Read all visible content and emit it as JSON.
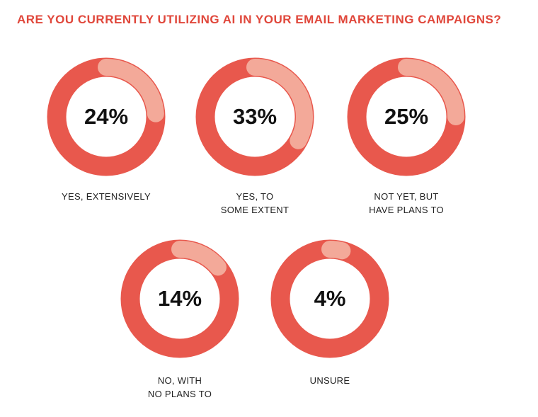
{
  "chart_data": {
    "type": "donut",
    "title": "ARE YOU CURRENTLY UTILIZING AI IN YOUR EMAIL MARKETING CAMPAIGNS?",
    "unit": "%",
    "categories": [
      "YES, EXTENSIVELY",
      "YES, TO\nSOME EXTENT",
      "NOT YET, BUT\nHAVE PLANS TO",
      "NO, WITH\nNO PLANS TO",
      "UNSURE"
    ],
    "values": [
      24,
      33,
      25,
      14,
      4
    ],
    "value_labels": [
      "24%",
      "33%",
      "25%",
      "14%",
      "4%"
    ],
    "colors": {
      "remainder": "#e8584d",
      "highlight": "#f3a999",
      "title": "#e0473b"
    }
  }
}
